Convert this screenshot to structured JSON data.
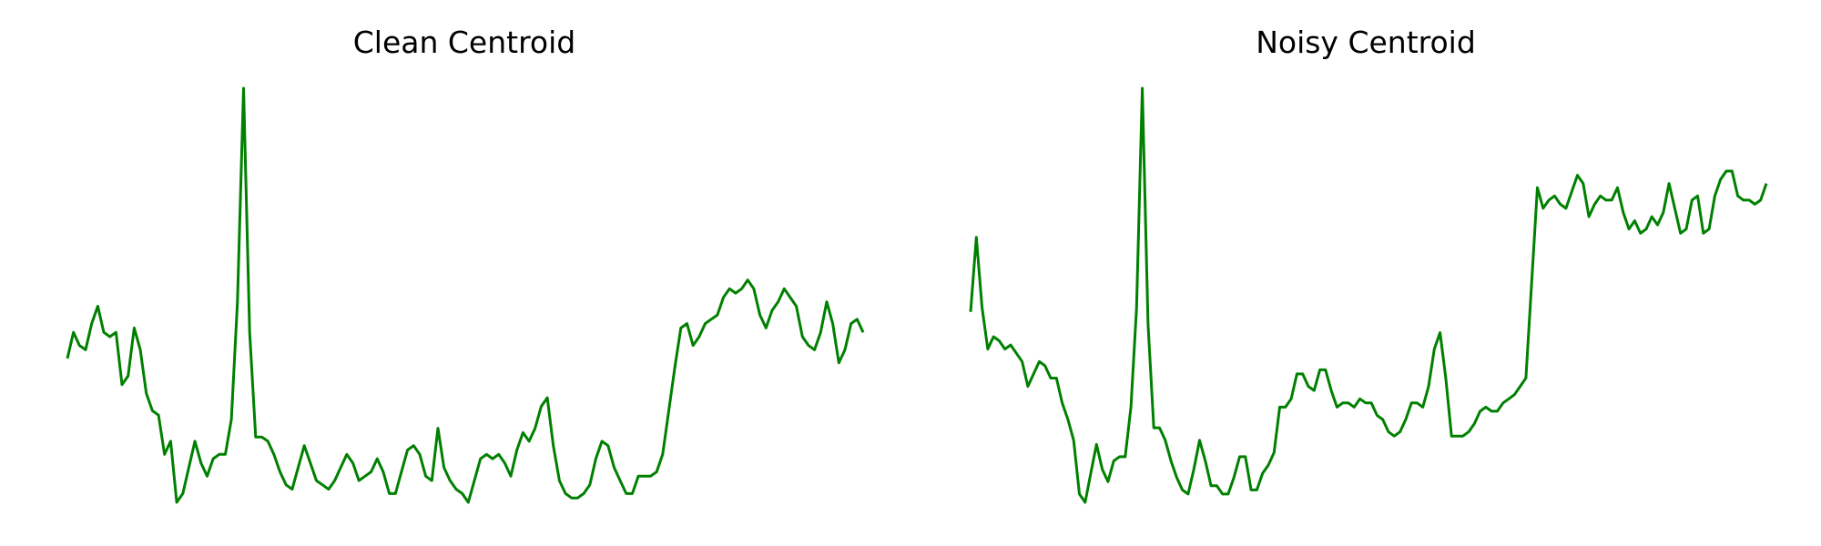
{
  "chart_data": [
    {
      "type": "line",
      "title": "Clean Centroid",
      "xlabel": "",
      "ylabel": "",
      "grid": false,
      "axes_visible": false,
      "color": "#008000",
      "series": [
        {
          "values": [
            0.38,
            0.44,
            0.41,
            0.4,
            0.46,
            0.5,
            0.44,
            0.43,
            0.44,
            0.32,
            0.34,
            0.45,
            0.4,
            0.3,
            0.26,
            0.25,
            0.16,
            0.19,
            0.05,
            0.07,
            0.13,
            0.19,
            0.14,
            0.11,
            0.15,
            0.16,
            0.16,
            0.24,
            0.51,
            1.0,
            0.44,
            0.2,
            0.2,
            0.19,
            0.16,
            0.12,
            0.09,
            0.08,
            0.13,
            0.18,
            0.14,
            0.1,
            0.09,
            0.08,
            0.1,
            0.13,
            0.16,
            0.14,
            0.1,
            0.11,
            0.12,
            0.15,
            0.12,
            0.07,
            0.07,
            0.12,
            0.17,
            0.18,
            0.16,
            0.11,
            0.1,
            0.22,
            0.13,
            0.1,
            0.08,
            0.07,
            0.05,
            0.1,
            0.15,
            0.16,
            0.15,
            0.16,
            0.14,
            0.11,
            0.17,
            0.21,
            0.19,
            0.22,
            0.27,
            0.29,
            0.18,
            0.1,
            0.07,
            0.06,
            0.06,
            0.07,
            0.09,
            0.15,
            0.19,
            0.18,
            0.13,
            0.1,
            0.07,
            0.07,
            0.11,
            0.11,
            0.11,
            0.12,
            0.16,
            0.26,
            0.36,
            0.45,
            0.46,
            0.41,
            0.43,
            0.46,
            0.47,
            0.48,
            0.52,
            0.54,
            0.53,
            0.54,
            0.56,
            0.54,
            0.48,
            0.45,
            0.49,
            0.51,
            0.54,
            0.52,
            0.5,
            0.43,
            0.41,
            0.4,
            0.44,
            0.51,
            0.46,
            0.37,
            0.4,
            0.46,
            0.47,
            0.44
          ]
        }
      ]
    },
    {
      "type": "line",
      "title": "Noisy Centroid",
      "xlabel": "",
      "ylabel": "",
      "grid": false,
      "axes_visible": false,
      "color": "#008000",
      "series": [
        {
          "values": [
            0.46,
            0.64,
            0.47,
            0.37,
            0.4,
            0.39,
            0.37,
            0.38,
            0.36,
            0.34,
            0.28,
            0.31,
            0.34,
            0.33,
            0.3,
            0.3,
            0.24,
            0.2,
            0.15,
            0.02,
            0.0,
            0.07,
            0.14,
            0.08,
            0.05,
            0.1,
            0.11,
            0.11,
            0.23,
            0.47,
            1.0,
            0.43,
            0.18,
            0.18,
            0.15,
            0.1,
            0.06,
            0.03,
            0.02,
            0.08,
            0.15,
            0.1,
            0.04,
            0.04,
            0.02,
            0.02,
            0.06,
            0.11,
            0.11,
            0.03,
            0.03,
            0.07,
            0.09,
            0.12,
            0.23,
            0.23,
            0.25,
            0.31,
            0.31,
            0.28,
            0.27,
            0.32,
            0.32,
            0.27,
            0.23,
            0.24,
            0.24,
            0.23,
            0.25,
            0.24,
            0.24,
            0.21,
            0.2,
            0.17,
            0.16,
            0.17,
            0.2,
            0.24,
            0.24,
            0.23,
            0.28,
            0.37,
            0.41,
            0.3,
            0.16,
            0.16,
            0.16,
            0.17,
            0.19,
            0.22,
            0.23,
            0.22,
            0.22,
            0.24,
            0.25,
            0.26,
            0.28,
            0.3,
            0.53,
            0.76,
            0.71,
            0.73,
            0.74,
            0.72,
            0.71,
            0.75,
            0.79,
            0.77,
            0.69,
            0.72,
            0.74,
            0.73,
            0.73,
            0.76,
            0.7,
            0.66,
            0.68,
            0.65,
            0.66,
            0.69,
            0.67,
            0.7,
            0.77,
            0.71,
            0.65,
            0.66,
            0.73,
            0.74,
            0.65,
            0.66,
            0.74,
            0.78,
            0.8,
            0.8,
            0.74,
            0.73,
            0.73,
            0.72,
            0.73,
            0.77
          ]
        }
      ]
    }
  ]
}
